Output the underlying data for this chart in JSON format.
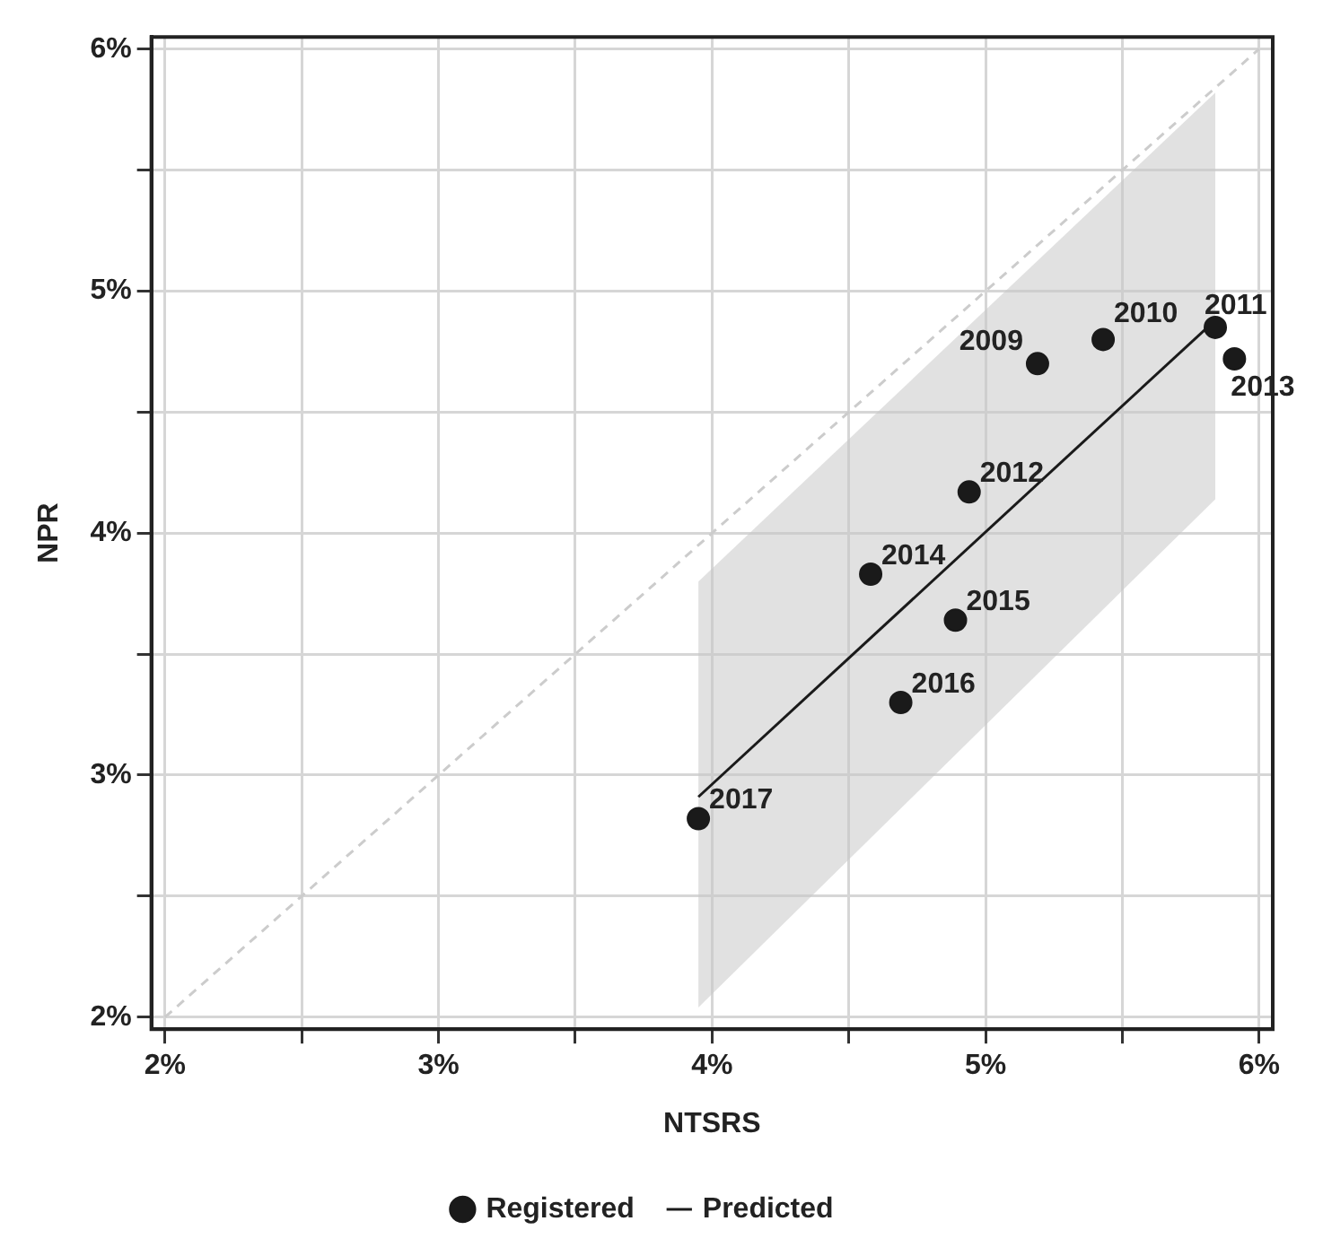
{
  "chart_data": {
    "type": "scatter",
    "xlabel": "NTSRS",
    "ylabel": "NPR",
    "xlim": [
      1.95,
      6.05
    ],
    "ylim": [
      1.95,
      6.05
    ],
    "xticks": [
      {
        "value": 2,
        "label": "2%"
      },
      {
        "value": 2.5,
        "label": null
      },
      {
        "value": 3,
        "label": "3%"
      },
      {
        "value": 3.5,
        "label": null
      },
      {
        "value": 4,
        "label": "4%"
      },
      {
        "value": 4.5,
        "label": null
      },
      {
        "value": 5,
        "label": "5%"
      },
      {
        "value": 5.5,
        "label": null
      },
      {
        "value": 6,
        "label": "6%"
      }
    ],
    "yticks": [
      {
        "value": 2,
        "label": "2%"
      },
      {
        "value": 2.5,
        "label": null
      },
      {
        "value": 3,
        "label": "3%"
      },
      {
        "value": 3.5,
        "label": null
      },
      {
        "value": 4,
        "label": "4%"
      },
      {
        "value": 4.5,
        "label": null
      },
      {
        "value": 5,
        "label": "5%"
      },
      {
        "value": 5.5,
        "label": null
      },
      {
        "value": 6,
        "label": "6%"
      }
    ],
    "grid": true,
    "legend": "bottom",
    "series": [
      {
        "type": "line",
        "color": "#cccccc",
        "line_style": "dashed",
        "marker": "none",
        "x": [
          2,
          6
        ],
        "values": [
          2,
          6
        ]
      },
      {
        "type": "line",
        "name": "Predicted",
        "color": "#1a1a1a",
        "line_style": "solid",
        "marker": "none",
        "x": [
          3.95,
          5.84
        ],
        "values": [
          2.91,
          4.88
        ],
        "lower": [
          2.04,
          4.14
        ],
        "upper": [
          3.8,
          5.82
        ]
      },
      {
        "name": "Registered",
        "color": "#1a1a1a",
        "marker": "circle",
        "x": [
          5.19,
          5.43,
          5.84,
          5.91,
          4.94,
          4.58,
          4.89,
          4.69,
          3.95
        ],
        "values": [
          4.7,
          4.8,
          4.85,
          4.72,
          4.17,
          3.83,
          3.64,
          3.3,
          2.82
        ]
      }
    ],
    "annotations": [
      {
        "text": "2009",
        "x": 5.19,
        "y": 4.7
      },
      {
        "text": "2010",
        "x": 5.43,
        "y": 4.8
      },
      {
        "text": "2011",
        "x": 5.84,
        "y": 4.85
      },
      {
        "text": "2013",
        "x": 5.91,
        "y": 4.72
      },
      {
        "text": "2012",
        "x": 4.94,
        "y": 4.17
      },
      {
        "text": "2014",
        "x": 4.58,
        "y": 3.83
      },
      {
        "text": "2015",
        "x": 4.89,
        "y": 3.64
      },
      {
        "text": "2016",
        "x": 4.69,
        "y": 3.3
      },
      {
        "text": "2017",
        "x": 3.95,
        "y": 2.82
      }
    ]
  }
}
